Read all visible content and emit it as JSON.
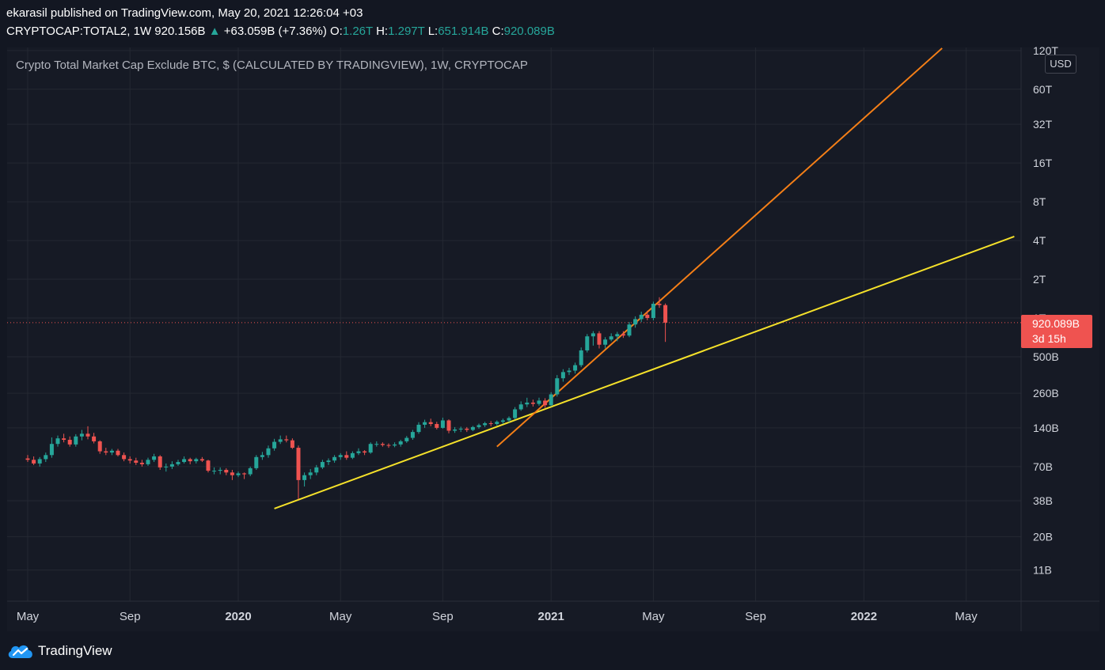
{
  "header": {
    "published": "ekarasil published on TradingView.com, May 20, 2021 12:26:04 +03",
    "symbol": "CRYPTOCAP:TOTAL2, 1W",
    "last": "920.156B",
    "change": "+63.059B (+7.36%)",
    "o_label": "O:",
    "o": "1.26T",
    "h_label": "H:",
    "h": "1.297T",
    "l_label": "L:",
    "l": "651.914B",
    "c_label": "C:",
    "c": "920.089B"
  },
  "chart_title": "Crypto Total Market Cap Exclude BTC, $ (CALCULATED BY TRADINGVIEW), 1W, CRYPTOCAP",
  "currency": "USD",
  "price_label": {
    "value": "920.089B",
    "countdown": "3d 15h"
  },
  "logo": {
    "text": "TradingView",
    "icon": "tradingview-cloud-icon"
  },
  "colors": {
    "background": "#131722",
    "up": "#26a69a",
    "down": "#ef5350",
    "support_line": "#f5e12a",
    "trend_line": "#f57f17"
  },
  "chart_data": {
    "type": "candlestick",
    "y_scale": "log",
    "y_ticks": [
      "120T",
      "60T",
      "32T",
      "16T",
      "8T",
      "4T",
      "2T",
      "1T",
      "500B",
      "260B",
      "140B",
      "70B",
      "38B",
      "20B",
      "11B"
    ],
    "y_tick_values": [
      120000000000000.0,
      60000000000000.0,
      32000000000000.0,
      16000000000000.0,
      8000000000000.0,
      4000000000000.0,
      2000000000000.0,
      1000000000000.0,
      500000000000.0,
      260000000000.0,
      140000000000.0,
      70000000000.0,
      38000000000.0,
      20000000000.0,
      11000000000.0
    ],
    "x_ticks": [
      "May",
      "Sep",
      "2020",
      "May",
      "Sep",
      "2021",
      "May",
      "Sep",
      "2022",
      "May"
    ],
    "x_tick_bold": [
      false,
      false,
      true,
      false,
      false,
      true,
      false,
      false,
      true,
      false
    ],
    "x_tick_weeks": [
      0,
      17,
      35,
      52,
      69,
      87,
      104,
      121,
      139,
      156
    ],
    "current_close": 920089000000,
    "candles": [
      {
        "w": 0,
        "o": 81000000000.0,
        "h": 86000000000.0,
        "l": 76000000000.0,
        "c": 79000000000.0
      },
      {
        "w": 1,
        "o": 79000000000.0,
        "h": 84000000000.0,
        "l": 72000000000.0,
        "c": 74000000000.0
      },
      {
        "w": 2,
        "o": 74000000000.0,
        "h": 83000000000.0,
        "l": 70000000000.0,
        "c": 80000000000.0
      },
      {
        "w": 3,
        "o": 80000000000.0,
        "h": 90000000000.0,
        "l": 76000000000.0,
        "c": 86000000000.0
      },
      {
        "w": 4,
        "o": 86000000000.0,
        "h": 118000000000.0,
        "l": 82000000000.0,
        "c": 105000000000.0
      },
      {
        "w": 5,
        "o": 105000000000.0,
        "h": 122000000000.0,
        "l": 100000000000.0,
        "c": 116000000000.0
      },
      {
        "w": 6,
        "o": 116000000000.0,
        "h": 126000000000.0,
        "l": 108000000000.0,
        "c": 113000000000.0
      },
      {
        "w": 7,
        "o": 113000000000.0,
        "h": 120000000000.0,
        "l": 100000000000.0,
        "c": 104000000000.0
      },
      {
        "w": 8,
        "o": 104000000000.0,
        "h": 125000000000.0,
        "l": 100000000000.0,
        "c": 120000000000.0
      },
      {
        "w": 9,
        "o": 120000000000.0,
        "h": 135000000000.0,
        "l": 112000000000.0,
        "c": 126000000000.0
      },
      {
        "w": 10,
        "o": 126000000000.0,
        "h": 144000000000.0,
        "l": 114000000000.0,
        "c": 120000000000.0
      },
      {
        "w": 11,
        "o": 120000000000.0,
        "h": 128000000000.0,
        "l": 106000000000.0,
        "c": 110000000000.0
      },
      {
        "w": 12,
        "o": 110000000000.0,
        "h": 112000000000.0,
        "l": 88000000000.0,
        "c": 92000000000.0
      },
      {
        "w": 13,
        "o": 92000000000.0,
        "h": 98000000000.0,
        "l": 86000000000.0,
        "c": 90000000000.0
      },
      {
        "w": 14,
        "o": 90000000000.0,
        "h": 96000000000.0,
        "l": 86000000000.0,
        "c": 93000000000.0
      },
      {
        "w": 15,
        "o": 93000000000.0,
        "h": 96000000000.0,
        "l": 84000000000.0,
        "c": 86000000000.0
      },
      {
        "w": 16,
        "o": 86000000000.0,
        "h": 90000000000.0,
        "l": 77000000000.0,
        "c": 80000000000.0
      },
      {
        "w": 17,
        "o": 80000000000.0,
        "h": 84000000000.0,
        "l": 74000000000.0,
        "c": 78000000000.0
      },
      {
        "w": 18,
        "o": 78000000000.0,
        "h": 82000000000.0,
        "l": 72000000000.0,
        "c": 75000000000.0
      },
      {
        "w": 19,
        "o": 75000000000.0,
        "h": 79000000000.0,
        "l": 70000000000.0,
        "c": 73000000000.0
      },
      {
        "w": 20,
        "o": 73000000000.0,
        "h": 82000000000.0,
        "l": 71000000000.0,
        "c": 79000000000.0
      },
      {
        "w": 21,
        "o": 79000000000.0,
        "h": 88000000000.0,
        "l": 76000000000.0,
        "c": 84000000000.0
      },
      {
        "w": 22,
        "o": 84000000000.0,
        "h": 86000000000.0,
        "l": 66000000000.0,
        "c": 69000000000.0
      },
      {
        "w": 23,
        "o": 69000000000.0,
        "h": 74000000000.0,
        "l": 64000000000.0,
        "c": 70000000000.0
      },
      {
        "w": 24,
        "o": 70000000000.0,
        "h": 77000000000.0,
        "l": 67000000000.0,
        "c": 73000000000.0
      },
      {
        "w": 25,
        "o": 73000000000.0,
        "h": 79000000000.0,
        "l": 71000000000.0,
        "c": 76000000000.0
      },
      {
        "w": 26,
        "o": 76000000000.0,
        "h": 84000000000.0,
        "l": 74000000000.0,
        "c": 80000000000.0
      },
      {
        "w": 27,
        "o": 80000000000.0,
        "h": 82000000000.0,
        "l": 73000000000.0,
        "c": 77000000000.0
      },
      {
        "w": 28,
        "o": 77000000000.0,
        "h": 82000000000.0,
        "l": 74000000000.0,
        "c": 80000000000.0
      },
      {
        "w": 29,
        "o": 80000000000.0,
        "h": 83000000000.0,
        "l": 76000000000.0,
        "c": 78000000000.0
      },
      {
        "w": 30,
        "o": 78000000000.0,
        "h": 79000000000.0,
        "l": 63000000000.0,
        "c": 65000000000.0
      },
      {
        "w": 31,
        "o": 65000000000.0,
        "h": 69000000000.0,
        "l": 61000000000.0,
        "c": 65000000000.0
      },
      {
        "w": 32,
        "o": 65000000000.0,
        "h": 69000000000.0,
        "l": 61000000000.0,
        "c": 66000000000.0
      },
      {
        "w": 33,
        "o": 66000000000.0,
        "h": 68000000000.0,
        "l": 60000000000.0,
        "c": 63000000000.0
      },
      {
        "w": 34,
        "o": 63000000000.0,
        "h": 66000000000.0,
        "l": 55000000000.0,
        "c": 60000000000.0
      },
      {
        "w": 35,
        "o": 60000000000.0,
        "h": 64000000000.0,
        "l": 58000000000.0,
        "c": 62000000000.0
      },
      {
        "w": 36,
        "o": 62000000000.0,
        "h": 63000000000.0,
        "l": 56000000000.0,
        "c": 61000000000.0
      },
      {
        "w": 37,
        "o": 61000000000.0,
        "h": 70000000000.0,
        "l": 59000000000.0,
        "c": 68000000000.0
      },
      {
        "w": 38,
        "o": 68000000000.0,
        "h": 86000000000.0,
        "l": 66000000000.0,
        "c": 83000000000.0
      },
      {
        "w": 39,
        "o": 83000000000.0,
        "h": 91000000000.0,
        "l": 79000000000.0,
        "c": 86000000000.0
      },
      {
        "w": 40,
        "o": 86000000000.0,
        "h": 102000000000.0,
        "l": 82000000000.0,
        "c": 97000000000.0
      },
      {
        "w": 41,
        "o": 97000000000.0,
        "h": 115000000000.0,
        "l": 93000000000.0,
        "c": 109000000000.0
      },
      {
        "w": 42,
        "o": 109000000000.0,
        "h": 122000000000.0,
        "l": 105000000000.0,
        "c": 114000000000.0
      },
      {
        "w": 43,
        "o": 114000000000.0,
        "h": 122000000000.0,
        "l": 108000000000.0,
        "c": 112000000000.0
      },
      {
        "w": 44,
        "o": 112000000000.0,
        "h": 116000000000.0,
        "l": 96000000000.0,
        "c": 98000000000.0
      },
      {
        "w": 45,
        "o": 98000000000.0,
        "h": 102000000000.0,
        "l": 39000000000.0,
        "c": 55000000000.0
      },
      {
        "w": 46,
        "o": 55000000000.0,
        "h": 63000000000.0,
        "l": 49000000000.0,
        "c": 60000000000.0
      },
      {
        "w": 47,
        "o": 60000000000.0,
        "h": 67000000000.0,
        "l": 56000000000.0,
        "c": 63000000000.0
      },
      {
        "w": 48,
        "o": 63000000000.0,
        "h": 72000000000.0,
        "l": 60000000000.0,
        "c": 69000000000.0
      },
      {
        "w": 49,
        "o": 69000000000.0,
        "h": 79000000000.0,
        "l": 67000000000.0,
        "c": 76000000000.0
      },
      {
        "w": 50,
        "o": 76000000000.0,
        "h": 81000000000.0,
        "l": 72000000000.0,
        "c": 78000000000.0
      },
      {
        "w": 51,
        "o": 78000000000.0,
        "h": 86000000000.0,
        "l": 75000000000.0,
        "c": 83000000000.0
      },
      {
        "w": 52,
        "o": 83000000000.0,
        "h": 89000000000.0,
        "l": 79000000000.0,
        "c": 86000000000.0
      },
      {
        "w": 53,
        "o": 86000000000.0,
        "h": 92000000000.0,
        "l": 79000000000.0,
        "c": 82000000000.0
      },
      {
        "w": 54,
        "o": 82000000000.0,
        "h": 92000000000.0,
        "l": 80000000000.0,
        "c": 89000000000.0
      },
      {
        "w": 55,
        "o": 89000000000.0,
        "h": 97000000000.0,
        "l": 86000000000.0,
        "c": 92000000000.0
      },
      {
        "w": 56,
        "o": 92000000000.0,
        "h": 94000000000.0,
        "l": 86000000000.0,
        "c": 90000000000.0
      },
      {
        "w": 57,
        "o": 90000000000.0,
        "h": 108000000000.0,
        "l": 88000000000.0,
        "c": 105000000000.0
      },
      {
        "w": 58,
        "o": 105000000000.0,
        "h": 110000000000.0,
        "l": 100000000000.0,
        "c": 105000000000.0
      },
      {
        "w": 59,
        "o": 105000000000.0,
        "h": 108000000000.0,
        "l": 100000000000.0,
        "c": 103000000000.0
      },
      {
        "w": 60,
        "o": 103000000000.0,
        "h": 106000000000.0,
        "l": 98000000000.0,
        "c": 102000000000.0
      },
      {
        "w": 61,
        "o": 102000000000.0,
        "h": 108000000000.0,
        "l": 99000000000.0,
        "c": 104000000000.0
      },
      {
        "w": 62,
        "o": 104000000000.0,
        "h": 113000000000.0,
        "l": 100000000000.0,
        "c": 110000000000.0
      },
      {
        "w": 63,
        "o": 110000000000.0,
        "h": 121000000000.0,
        "l": 107000000000.0,
        "c": 117000000000.0
      },
      {
        "w": 64,
        "o": 117000000000.0,
        "h": 135000000000.0,
        "l": 113000000000.0,
        "c": 130000000000.0
      },
      {
        "w": 65,
        "o": 130000000000.0,
        "h": 155000000000.0,
        "l": 126000000000.0,
        "c": 148000000000.0
      },
      {
        "w": 66,
        "o": 148000000000.0,
        "h": 162000000000.0,
        "l": 140000000000.0,
        "c": 155000000000.0
      },
      {
        "w": 67,
        "o": 155000000000.0,
        "h": 165000000000.0,
        "l": 144000000000.0,
        "c": 150000000000.0
      },
      {
        "w": 68,
        "o": 150000000000.0,
        "h": 156000000000.0,
        "l": 136000000000.0,
        "c": 140000000000.0
      },
      {
        "w": 69,
        "o": 140000000000.0,
        "h": 168000000000.0,
        "l": 138000000000.0,
        "c": 160000000000.0
      },
      {
        "w": 70,
        "o": 160000000000.0,
        "h": 163000000000.0,
        "l": 127000000000.0,
        "c": 133000000000.0
      },
      {
        "w": 71,
        "o": 133000000000.0,
        "h": 142000000000.0,
        "l": 128000000000.0,
        "c": 136000000000.0
      },
      {
        "w": 72,
        "o": 136000000000.0,
        "h": 143000000000.0,
        "l": 130000000000.0,
        "c": 138000000000.0
      },
      {
        "w": 73,
        "o": 138000000000.0,
        "h": 142000000000.0,
        "l": 130000000000.0,
        "c": 135000000000.0
      },
      {
        "w": 74,
        "o": 135000000000.0,
        "h": 145000000000.0,
        "l": 132000000000.0,
        "c": 142000000000.0
      },
      {
        "w": 75,
        "o": 142000000000.0,
        "h": 151000000000.0,
        "l": 138000000000.0,
        "c": 147000000000.0
      },
      {
        "w": 76,
        "o": 147000000000.0,
        "h": 156000000000.0,
        "l": 142000000000.0,
        "c": 152000000000.0
      },
      {
        "w": 77,
        "o": 152000000000.0,
        "h": 158000000000.0,
        "l": 144000000000.0,
        "c": 150000000000.0
      },
      {
        "w": 78,
        "o": 150000000000.0,
        "h": 160000000000.0,
        "l": 146000000000.0,
        "c": 156000000000.0
      },
      {
        "w": 79,
        "o": 156000000000.0,
        "h": 165000000000.0,
        "l": 150000000000.0,
        "c": 160000000000.0
      },
      {
        "w": 80,
        "o": 160000000000.0,
        "h": 172000000000.0,
        "l": 154000000000.0,
        "c": 167000000000.0
      },
      {
        "w": 81,
        "o": 167000000000.0,
        "h": 203000000000.0,
        "l": 163000000000.0,
        "c": 195000000000.0
      },
      {
        "w": 82,
        "o": 195000000000.0,
        "h": 225000000000.0,
        "l": 190000000000.0,
        "c": 213000000000.0
      },
      {
        "w": 83,
        "o": 213000000000.0,
        "h": 240000000000.0,
        "l": 203000000000.0,
        "c": 220000000000.0
      },
      {
        "w": 84,
        "o": 220000000000.0,
        "h": 232000000000.0,
        "l": 205000000000.0,
        "c": 215000000000.0
      },
      {
        "w": 85,
        "o": 215000000000.0,
        "h": 240000000000.0,
        "l": 208000000000.0,
        "c": 228000000000.0
      },
      {
        "w": 86,
        "o": 228000000000.0,
        "h": 238000000000.0,
        "l": 200000000000.0,
        "c": 210000000000.0
      },
      {
        "w": 87,
        "o": 210000000000.0,
        "h": 265000000000.0,
        "l": 205000000000.0,
        "c": 255000000000.0
      },
      {
        "w": 88,
        "o": 255000000000.0,
        "h": 360000000000.0,
        "l": 245000000000.0,
        "c": 340000000000.0
      },
      {
        "w": 89,
        "o": 340000000000.0,
        "h": 400000000000.0,
        "l": 320000000000.0,
        "c": 380000000000.0
      },
      {
        "w": 90,
        "o": 380000000000.0,
        "h": 410000000000.0,
        "l": 360000000000.0,
        "c": 390000000000.0
      },
      {
        "w": 91,
        "o": 390000000000.0,
        "h": 450000000000.0,
        "l": 370000000000.0,
        "c": 430000000000.0
      },
      {
        "w": 92,
        "o": 430000000000.0,
        "h": 590000000000.0,
        "l": 415000000000.0,
        "c": 560000000000.0
      },
      {
        "w": 93,
        "o": 560000000000.0,
        "h": 750000000000.0,
        "l": 540000000000.0,
        "c": 720000000000.0
      },
      {
        "w": 94,
        "o": 720000000000.0,
        "h": 790000000000.0,
        "l": 610000000000.0,
        "c": 760000000000.0
      },
      {
        "w": 95,
        "o": 760000000000.0,
        "h": 790000000000.0,
        "l": 580000000000.0,
        "c": 620000000000.0
      },
      {
        "w": 96,
        "o": 620000000000.0,
        "h": 710000000000.0,
        "l": 580000000000.0,
        "c": 680000000000.0
      },
      {
        "w": 97,
        "o": 680000000000.0,
        "h": 760000000000.0,
        "l": 660000000000.0,
        "c": 720000000000.0
      },
      {
        "w": 98,
        "o": 720000000000.0,
        "h": 780000000000.0,
        "l": 660000000000.0,
        "c": 750000000000.0
      },
      {
        "w": 99,
        "o": 750000000000.0,
        "h": 790000000000.0,
        "l": 700000000000.0,
        "c": 730000000000.0
      },
      {
        "w": 100,
        "o": 730000000000.0,
        "h": 930000000000.0,
        "l": 710000000000.0,
        "c": 890000000000.0
      },
      {
        "w": 101,
        "o": 890000000000.0,
        "h": 1030000000000.0,
        "l": 840000000000.0,
        "c": 980000000000.0
      },
      {
        "w": 102,
        "o": 980000000000.0,
        "h": 1120000000000.0,
        "l": 930000000000.0,
        "c": 1060000000000.0
      },
      {
        "w": 103,
        "o": 1060000000000.0,
        "h": 1140000000000.0,
        "l": 960000000000.0,
        "c": 1000000000000.0
      },
      {
        "w": 104,
        "o": 1000000000000.0,
        "h": 1340000000000.0,
        "l": 960000000000.0,
        "c": 1290000000000.0
      },
      {
        "w": 105,
        "o": 1290000000000.0,
        "h": 1450000000000.0,
        "l": 1200000000000.0,
        "c": 1260000000000.0
      },
      {
        "w": 106,
        "o": 1260000000000.0,
        "h": 1297000000000.0,
        "l": 651914000000.0,
        "c": 920089000000.0
      }
    ],
    "trend_lines": [
      {
        "name": "",
        "color": "#f5e12a",
        "points": [
          {
            "w": 41,
            "v": 33000000000.0
          },
          {
            "w": 164,
            "v": 4300000000000.0
          }
        ]
      },
      {
        "name": "",
        "color": "#f57f17",
        "points": [
          {
            "w": 78,
            "v": 100000000000.0
          },
          {
            "w": 152,
            "v": 125000000000000.0
          }
        ]
      }
    ]
  }
}
